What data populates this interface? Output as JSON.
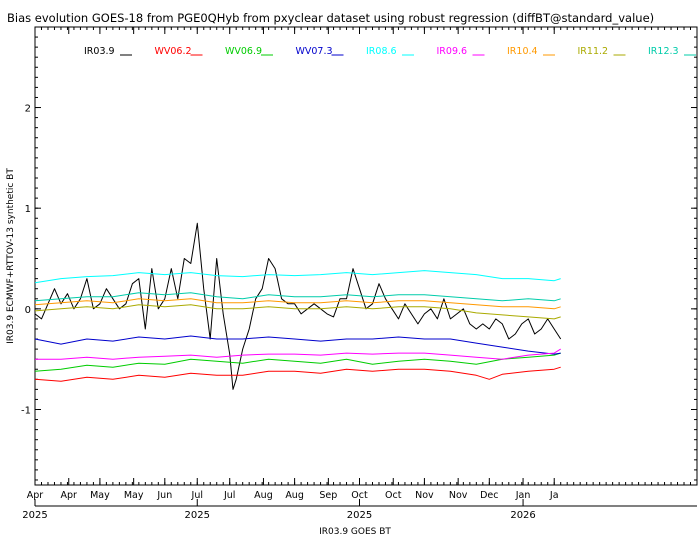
{
  "chart_data": {
    "type": "line",
    "title": "Bias evolution GOES-18 from PGE0QHyb from pxyclear dataset using robust regression (diffBT@standard_value)",
    "xlabel": "IR03.9 GOES BT",
    "ylabel": "IR03.9 ECMWF+RTTOV-13 synthetic BT",
    "ylim": [
      -1.75,
      2.8
    ],
    "yticks": [
      -1,
      0,
      1,
      2
    ],
    "grid": false,
    "legend_position": "top",
    "x_domain_months": [
      0,
      10.2
    ],
    "month_ticks": [
      {
        "label": "Apr",
        "pos": 0.0
      },
      {
        "label": "Apr",
        "pos": 0.52
      },
      {
        "label": "May",
        "pos": 1.0
      },
      {
        "label": "May",
        "pos": 1.52
      },
      {
        "label": "Jun",
        "pos": 2.0
      },
      {
        "label": "Jul",
        "pos": 2.5
      },
      {
        "label": "Jul",
        "pos": 3.0
      },
      {
        "label": "Aug",
        "pos": 3.52
      },
      {
        "label": "Aug",
        "pos": 4.0
      },
      {
        "label": "Sep",
        "pos": 4.52
      },
      {
        "label": "Oct",
        "pos": 5.0
      },
      {
        "label": "Oct",
        "pos": 5.52
      },
      {
        "label": "Nov",
        "pos": 6.0
      },
      {
        "label": "Nov",
        "pos": 6.52
      },
      {
        "label": "Dec",
        "pos": 7.0
      },
      {
        "label": "Jan",
        "pos": 7.52
      },
      {
        "label": "Ja",
        "pos": 8.0
      }
    ],
    "year_ticks": [
      {
        "label": "2025",
        "pos": 0.0
      },
      {
        "label": "2025",
        "pos": 2.5
      },
      {
        "label": "2025",
        "pos": 5.0
      },
      {
        "label": "2026",
        "pos": 7.52
      }
    ],
    "series": [
      {
        "name": "IR03.9",
        "color": "#000000",
        "x": [
          0,
          0.1,
          0.2,
          0.3,
          0.4,
          0.5,
          0.6,
          0.7,
          0.8,
          0.9,
          1.0,
          1.1,
          1.2,
          1.3,
          1.4,
          1.5,
          1.6,
          1.7,
          1.8,
          1.9,
          2.0,
          2.1,
          2.2,
          2.3,
          2.4,
          2.5,
          2.6,
          2.7,
          2.8,
          2.9,
          3.0,
          3.05,
          3.1,
          3.2,
          3.3,
          3.4,
          3.5,
          3.6,
          3.7,
          3.8,
          3.9,
          4.0,
          4.1,
          4.2,
          4.3,
          4.4,
          4.5,
          4.6,
          4.7,
          4.8,
          4.9,
          5.0,
          5.1,
          5.2,
          5.3,
          5.4,
          5.5,
          5.6,
          5.7,
          5.8,
          5.9,
          6.0,
          6.1,
          6.2,
          6.3,
          6.4,
          6.5,
          6.6,
          6.7,
          6.8,
          6.9,
          7.0,
          7.1,
          7.2,
          7.3,
          7.4,
          7.5,
          7.6,
          7.7,
          7.8,
          7.9,
          8.0,
          8.1
        ],
        "values": [
          -0.05,
          -0.1,
          0.05,
          0.2,
          0.05,
          0.15,
          0.0,
          0.1,
          0.3,
          0.0,
          0.05,
          0.2,
          0.1,
          0.0,
          0.05,
          0.25,
          0.3,
          -0.2,
          0.4,
          0.0,
          0.1,
          0.4,
          0.1,
          0.5,
          0.45,
          0.85,
          0.2,
          -0.3,
          0.5,
          -0.05,
          -0.45,
          -0.8,
          -0.7,
          -0.4,
          -0.2,
          0.1,
          0.2,
          0.5,
          0.4,
          0.1,
          0.05,
          0.05,
          -0.05,
          0.0,
          0.05,
          0.0,
          -0.05,
          -0.08,
          0.1,
          0.1,
          0.4,
          0.2,
          0.0,
          0.05,
          0.25,
          0.1,
          0.0,
          -0.1,
          0.05,
          -0.05,
          -0.15,
          -0.05,
          0.0,
          -0.1,
          0.1,
          -0.1,
          -0.05,
          0.0,
          -0.15,
          -0.2,
          -0.15,
          -0.2,
          -0.1,
          -0.15,
          -0.3,
          -0.25,
          -0.15,
          -0.1,
          -0.25,
          -0.2,
          -0.1,
          -0.2,
          -0.3
        ]
      },
      {
        "name": "WV06.2",
        "color": "#ff0000",
        "x": [
          0,
          0.4,
          0.8,
          1.2,
          1.6,
          2.0,
          2.4,
          2.8,
          3.2,
          3.6,
          4.0,
          4.4,
          4.8,
          5.2,
          5.6,
          6.0,
          6.4,
          6.8,
          7.0,
          7.2,
          7.6,
          8.0,
          8.1
        ],
        "values": [
          -0.7,
          -0.72,
          -0.68,
          -0.7,
          -0.66,
          -0.68,
          -0.64,
          -0.66,
          -0.66,
          -0.62,
          -0.62,
          -0.64,
          -0.6,
          -0.62,
          -0.6,
          -0.6,
          -0.62,
          -0.66,
          -0.7,
          -0.65,
          -0.62,
          -0.6,
          -0.58
        ]
      },
      {
        "name": "WV06.9",
        "color": "#00cc00",
        "x": [
          0,
          0.4,
          0.8,
          1.2,
          1.6,
          2.0,
          2.4,
          2.8,
          3.2,
          3.6,
          4.0,
          4.4,
          4.8,
          5.2,
          5.6,
          6.0,
          6.4,
          6.8,
          7.2,
          7.6,
          8.0,
          8.1
        ],
        "values": [
          -0.62,
          -0.6,
          -0.56,
          -0.58,
          -0.54,
          -0.55,
          -0.5,
          -0.52,
          -0.54,
          -0.5,
          -0.52,
          -0.54,
          -0.5,
          -0.55,
          -0.52,
          -0.5,
          -0.52,
          -0.55,
          -0.5,
          -0.48,
          -0.46,
          -0.44
        ]
      },
      {
        "name": "WV07.3",
        "color": "#0000cc",
        "x": [
          0,
          0.4,
          0.8,
          1.2,
          1.6,
          2.0,
          2.4,
          2.8,
          3.2,
          3.6,
          4.0,
          4.4,
          4.8,
          5.2,
          5.6,
          6.0,
          6.4,
          6.8,
          7.2,
          7.6,
          8.0,
          8.1
        ],
        "values": [
          -0.3,
          -0.35,
          -0.3,
          -0.32,
          -0.28,
          -0.3,
          -0.27,
          -0.3,
          -0.3,
          -0.28,
          -0.3,
          -0.32,
          -0.3,
          -0.3,
          -0.28,
          -0.3,
          -0.3,
          -0.34,
          -0.38,
          -0.42,
          -0.45,
          -0.44
        ]
      },
      {
        "name": "IR08.6",
        "color": "#00ffff",
        "x": [
          0,
          0.4,
          0.8,
          1.2,
          1.6,
          2.0,
          2.4,
          2.8,
          3.2,
          3.6,
          4.0,
          4.4,
          4.8,
          5.2,
          5.6,
          6.0,
          6.4,
          6.8,
          7.2,
          7.6,
          8.0,
          8.1
        ],
        "values": [
          0.26,
          0.3,
          0.32,
          0.33,
          0.36,
          0.34,
          0.36,
          0.33,
          0.32,
          0.34,
          0.33,
          0.34,
          0.36,
          0.34,
          0.36,
          0.38,
          0.36,
          0.34,
          0.3,
          0.3,
          0.28,
          0.3
        ]
      },
      {
        "name": "IR09.6",
        "color": "#ff00ff",
        "x": [
          0,
          0.4,
          0.8,
          1.2,
          1.6,
          2.0,
          2.4,
          2.8,
          3.2,
          3.6,
          4.0,
          4.4,
          4.8,
          5.2,
          5.6,
          6.0,
          6.4,
          6.8,
          7.2,
          7.6,
          8.0,
          8.1
        ],
        "values": [
          -0.5,
          -0.5,
          -0.48,
          -0.5,
          -0.48,
          -0.47,
          -0.46,
          -0.48,
          -0.46,
          -0.45,
          -0.45,
          -0.46,
          -0.44,
          -0.45,
          -0.44,
          -0.44,
          -0.46,
          -0.48,
          -0.5,
          -0.46,
          -0.44,
          -0.4
        ]
      },
      {
        "name": "IR10.4",
        "color": "#ff9900",
        "x": [
          0,
          0.4,
          0.8,
          1.2,
          1.6,
          2.0,
          2.4,
          2.8,
          3.2,
          3.6,
          4.0,
          4.4,
          4.8,
          5.2,
          5.6,
          6.0,
          6.4,
          6.8,
          7.2,
          7.6,
          8.0,
          8.1
        ],
        "values": [
          0.04,
          0.06,
          0.08,
          0.06,
          0.1,
          0.08,
          0.1,
          0.06,
          0.06,
          0.08,
          0.06,
          0.06,
          0.08,
          0.06,
          0.08,
          0.08,
          0.06,
          0.04,
          0.02,
          0.02,
          0.0,
          0.02
        ]
      },
      {
        "name": "IR11.2",
        "color": "#aaaa00",
        "x": [
          0,
          0.4,
          0.8,
          1.2,
          1.6,
          2.0,
          2.4,
          2.8,
          3.2,
          3.6,
          4.0,
          4.4,
          4.8,
          5.2,
          5.6,
          6.0,
          6.4,
          6.8,
          7.2,
          7.6,
          8.0,
          8.1
        ],
        "values": [
          -0.02,
          0.0,
          0.02,
          0.0,
          0.04,
          0.02,
          0.04,
          0.0,
          0.0,
          0.02,
          0.0,
          0.0,
          0.02,
          0.0,
          0.02,
          0.02,
          0.0,
          -0.04,
          -0.06,
          -0.08,
          -0.1,
          -0.08
        ]
      },
      {
        "name": "IR12.3",
        "color": "#00ccaa",
        "x": [
          0,
          0.4,
          0.8,
          1.2,
          1.6,
          2.0,
          2.4,
          2.8,
          3.2,
          3.6,
          4.0,
          4.4,
          4.8,
          5.2,
          5.6,
          6.0,
          6.4,
          6.8,
          7.2,
          7.6,
          8.0,
          8.1
        ],
        "values": [
          0.08,
          0.1,
          0.12,
          0.12,
          0.16,
          0.14,
          0.16,
          0.12,
          0.1,
          0.14,
          0.12,
          0.12,
          0.14,
          0.12,
          0.14,
          0.14,
          0.12,
          0.1,
          0.08,
          0.1,
          0.08,
          0.1
        ]
      }
    ]
  }
}
